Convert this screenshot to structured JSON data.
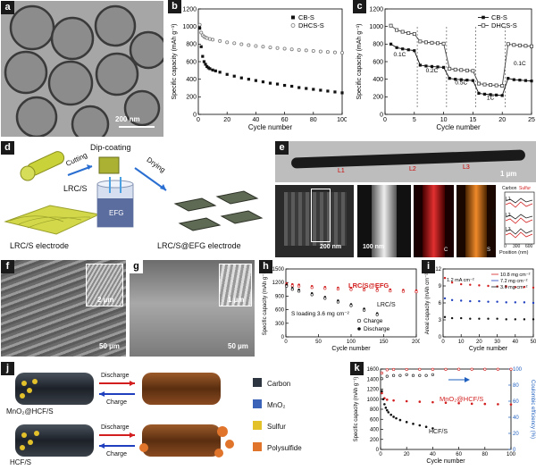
{
  "panels": {
    "a": {
      "label": "a",
      "scale_bar": "200 nm"
    },
    "b": {
      "label": "b"
    },
    "c": {
      "label": "c"
    },
    "d": {
      "label": "d",
      "dip_coating": "Dip-coating",
      "cutting": "Cutting",
      "drying": "Drying",
      "lrc_s": "LRC/S",
      "efg": "EFG",
      "electrode_left": "LRC/S electrode",
      "electrode_right": "LRC/S@EFG electrode"
    },
    "e": {
      "label": "e",
      "scale_bar_main": "1 µm",
      "scale_bar_200": "200 nm",
      "scale_bar_100": "100 nm",
      "marks": [
        "L1",
        "L2",
        "L3"
      ],
      "c_tag": "C",
      "s_tag": "S",
      "profile_legend": [
        "Carbon",
        "Sulfur"
      ],
      "profile_xlabel": "Position (nm)",
      "profile_ylabel": "Counts",
      "profile_ticks": [
        "0",
        "300",
        "600"
      ],
      "profile_lines": [
        "L1",
        "L2",
        "L3"
      ]
    },
    "f": {
      "label": "f",
      "inset_scale": "2 µm",
      "scale": "50 µm"
    },
    "g": {
      "label": "g",
      "inset_scale": "1 µm",
      "scale": "50 µm"
    },
    "h": {
      "label": "h"
    },
    "i": {
      "label": "i"
    },
    "j": {
      "label": "j",
      "discharge": "Discharge",
      "charge": "Charge",
      "row_labels": [
        "MnO₂@HCF/S",
        "HCF/S"
      ],
      "legend": [
        {
          "name": "Carbon",
          "color": "#2d3540"
        },
        {
          "name": "MnO₂",
          "color": "#3b63b8"
        },
        {
          "name": "Sulfur",
          "color": "#e3c12b"
        },
        {
          "name": "Polysulfide",
          "color": "#e0742a"
        }
      ]
    },
    "k": {
      "label": "k"
    }
  },
  "chart_data": [
    {
      "id": "b",
      "type": "scatter",
      "xlabel": "Cycle number",
      "ylabel": "Specific capacity (mAh g⁻¹)",
      "xlim": [
        0,
        100
      ],
      "ylim": [
        0,
        1200
      ],
      "xticks": [
        0,
        20,
        40,
        60,
        80,
        100
      ],
      "yticks": [
        0,
        200,
        400,
        600,
        800,
        1000,
        1200
      ],
      "legend_position": "top-right",
      "series": [
        {
          "name": "CB-S",
          "color": "#111111",
          "marker": "filled-square",
          "x": [
            1,
            2,
            3,
            4,
            5,
            6,
            7,
            8,
            10,
            12,
            15,
            20,
            25,
            30,
            35,
            40,
            45,
            50,
            55,
            60,
            65,
            70,
            75,
            80,
            85,
            90,
            95,
            100
          ],
          "y": [
            980,
            770,
            660,
            600,
            570,
            545,
            530,
            520,
            505,
            495,
            480,
            455,
            435,
            415,
            400,
            385,
            370,
            355,
            345,
            330,
            320,
            305,
            295,
            285,
            275,
            265,
            255,
            245
          ]
        },
        {
          "name": "DHCS-S",
          "color": "#7a7a7a",
          "marker": "open-circle",
          "x": [
            1,
            2,
            3,
            4,
            5,
            6,
            8,
            10,
            15,
            20,
            25,
            30,
            35,
            40,
            45,
            50,
            55,
            60,
            65,
            70,
            75,
            80,
            85,
            90,
            95,
            100
          ],
          "y": [
            1020,
            930,
            900,
            885,
            875,
            868,
            858,
            850,
            835,
            820,
            810,
            798,
            788,
            778,
            770,
            762,
            755,
            748,
            740,
            734,
            728,
            722,
            716,
            710,
            705,
            700
          ]
        }
      ]
    },
    {
      "id": "c",
      "type": "line",
      "xlabel": "Cycle number",
      "ylabel": "Specific capacity (mAh g⁻¹)",
      "xlim": [
        0,
        25
      ],
      "ylim": [
        0,
        1200
      ],
      "xticks": [
        0,
        5,
        10,
        15,
        20,
        25
      ],
      "yticks": [
        0,
        200,
        400,
        600,
        800,
        1000,
        1200
      ],
      "legend_position": "top-right",
      "rate_labels": [
        {
          "text": "0.1C",
          "x": 2.5,
          "y": 660
        },
        {
          "text": "0.2C",
          "x": 8.0,
          "y": 480
        },
        {
          "text": "0.5C",
          "x": 13.0,
          "y": 340
        },
        {
          "text": "1C",
          "x": 18.0,
          "y": 170
        },
        {
          "text": "0.1C",
          "x": 23.0,
          "y": 560
        }
      ],
      "dividers": [
        5.5,
        10.5,
        15.5,
        20.5
      ],
      "series": [
        {
          "name": "CB-S",
          "color": "#111111",
          "marker": "filled-square",
          "x": [
            1,
            2,
            3,
            4,
            5,
            6,
            7,
            8,
            9,
            10,
            11,
            12,
            13,
            14,
            15,
            16,
            17,
            18,
            19,
            20,
            21,
            22,
            23,
            24,
            25
          ],
          "y": [
            800,
            760,
            745,
            735,
            725,
            560,
            550,
            545,
            540,
            535,
            410,
            400,
            395,
            390,
            385,
            240,
            230,
            225,
            220,
            215,
            410,
            395,
            390,
            385,
            380
          ]
        },
        {
          "name": "DHCS-S",
          "color": "#444444",
          "marker": "open-square",
          "x": [
            1,
            2,
            3,
            4,
            5,
            6,
            7,
            8,
            9,
            10,
            11,
            12,
            13,
            14,
            15,
            16,
            17,
            18,
            19,
            20,
            21,
            22,
            23,
            24,
            25
          ],
          "y": [
            1010,
            960,
            940,
            925,
            915,
            830,
            820,
            815,
            810,
            805,
            520,
            510,
            505,
            500,
            495,
            350,
            340,
            335,
            330,
            325,
            800,
            790,
            785,
            780,
            775
          ]
        }
      ]
    },
    {
      "id": "h",
      "type": "scatter",
      "xlabel": "Cycle number",
      "ylabel": "Specific capacity (mAh g⁻¹)",
      "xlim": [
        0,
        200
      ],
      "ylim": [
        0,
        1500
      ],
      "xticks": [
        0,
        50,
        100,
        150,
        200
      ],
      "yticks": [
        0,
        300,
        600,
        900,
        1200,
        1500
      ],
      "annotation": "S loading 3.6 mg cm⁻²",
      "legend": [
        "Charge",
        "Discharge"
      ],
      "series": [
        {
          "name": "LRC/S@EFG",
          "color": "#d21e1e",
          "x": [
            1,
            10,
            20,
            40,
            60,
            80,
            100,
            120,
            140,
            160,
            180,
            200
          ],
          "y": [
            1180,
            1160,
            1150,
            1120,
            1100,
            1085,
            1075,
            1065,
            1055,
            1045,
            1035,
            1025
          ]
        },
        {
          "name": "LRC/S",
          "color": "#111111",
          "x": [
            1,
            10,
            20,
            40,
            60,
            80,
            100,
            120,
            140
          ],
          "y": [
            1150,
            1080,
            1040,
            960,
            880,
            800,
            720,
            620,
            520
          ]
        }
      ]
    },
    {
      "id": "i",
      "type": "scatter",
      "xlabel": "Cycle number",
      "ylabel": "Areal capacity (mAh cm⁻²)",
      "xlim": [
        0,
        50
      ],
      "ylim": [
        0,
        12
      ],
      "xticks": [
        0,
        10,
        20,
        30,
        40,
        50
      ],
      "yticks": [
        0,
        3,
        6,
        9,
        12
      ],
      "annotation": "1.2 mA cm⁻²",
      "series": [
        {
          "name": "10.8 mg cm⁻²",
          "color": "#d21e1e",
          "x": [
            1,
            5,
            10,
            15,
            20,
            25,
            30,
            35,
            40,
            45,
            50
          ],
          "y": [
            10.4,
            9.6,
            9.3,
            9.2,
            9.1,
            9.0,
            8.9,
            8.9,
            8.8,
            8.8,
            8.7
          ]
        },
        {
          "name": "7.2 mg cm⁻²",
          "color": "#1f3fbf",
          "x": [
            1,
            5,
            10,
            15,
            20,
            25,
            30,
            35,
            40,
            45,
            50
          ],
          "y": [
            6.8,
            6.5,
            6.4,
            6.3,
            6.3,
            6.2,
            6.2,
            6.1,
            6.1,
            6.1,
            6.0
          ]
        },
        {
          "name": "3.6 mg cm⁻²",
          "color": "#111111",
          "x": [
            1,
            5,
            10,
            15,
            20,
            25,
            30,
            35,
            40,
            45,
            50
          ],
          "y": [
            3.5,
            3.3,
            3.3,
            3.2,
            3.2,
            3.2,
            3.2,
            3.1,
            3.1,
            3.1,
            3.1
          ]
        }
      ]
    },
    {
      "id": "k",
      "type": "scatter",
      "xlabel": "Cycle number",
      "ylabel": "Specific capacity (mAh g⁻¹)",
      "y2label": "Coulombic efficiency (%)",
      "xlim": [
        0,
        100
      ],
      "ylim": [
        0,
        1600
      ],
      "y2lim": [
        0,
        100
      ],
      "xticks": [
        0,
        20,
        40,
        60,
        80,
        100
      ],
      "yticks": [
        0,
        200,
        400,
        600,
        800,
        1000,
        1200,
        1400,
        1600
      ],
      "y2ticks": [
        0,
        20,
        40,
        60,
        80,
        100
      ],
      "series": [
        {
          "name": "MnO₂@HCF/S",
          "color": "#d21e1e",
          "axis": "left",
          "x": [
            1,
            3,
            5,
            10,
            20,
            30,
            40,
            50,
            60,
            70,
            80,
            90,
            100
          ],
          "y": [
            1120,
            1020,
            990,
            975,
            960,
            950,
            940,
            930,
            920,
            910,
            905,
            900,
            895
          ]
        },
        {
          "name": "HCF/S",
          "color": "#111111",
          "axis": "left",
          "x": [
            1,
            2,
            3,
            4,
            5,
            6,
            8,
            10,
            12,
            15,
            20,
            25,
            30,
            35,
            40
          ],
          "y": [
            1160,
            1000,
            900,
            830,
            780,
            740,
            690,
            650,
            620,
            585,
            545,
            510,
            480,
            450,
            420
          ]
        },
        {
          "name": "CE MnO₂@HCF/S",
          "color": "#d21e1e",
          "axis": "right",
          "open": true,
          "x": [
            1,
            5,
            10,
            20,
            30,
            40,
            50,
            60,
            70,
            80,
            90,
            100
          ],
          "y": [
            95,
            99,
            99.5,
            99.5,
            99.6,
            99.6,
            99.6,
            99.7,
            99.7,
            99.7,
            99.7,
            99.7
          ]
        },
        {
          "name": "CE HCF/S",
          "color": "#111111",
          "axis": "right",
          "open": true,
          "x": [
            1,
            5,
            10,
            15,
            20,
            25,
            30,
            35,
            40
          ],
          "y": [
            88,
            91,
            92,
            92,
            93,
            92,
            92,
            92,
            93
          ]
        }
      ]
    }
  ]
}
